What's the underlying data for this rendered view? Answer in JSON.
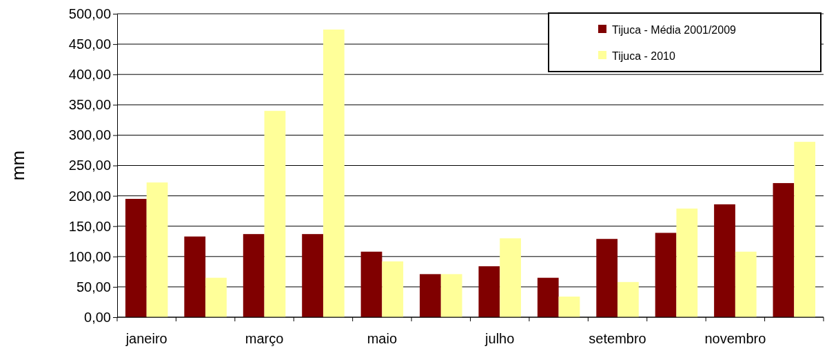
{
  "chart_data": {
    "type": "bar",
    "ylabel": "mm",
    "categories": [
      "janeiro",
      null,
      "março",
      null,
      "maio",
      null,
      "julho",
      null,
      "setembro",
      null,
      "novembro",
      null
    ],
    "series": [
      {
        "name": "Tijuca - Média 2001/2009",
        "color": "#800000",
        "values": [
          195,
          133,
          137,
          137,
          108,
          71,
          84,
          65,
          129,
          139,
          186,
          221
        ]
      },
      {
        "name": "Tijuca - 2010",
        "color": "#ffff99",
        "values": [
          222,
          65,
          340,
          474,
          92,
          71,
          130,
          34,
          58,
          179,
          108,
          289
        ]
      }
    ],
    "ylim": [
      0,
      500
    ],
    "yticks": [
      {
        "value": 0,
        "label": "0,00"
      },
      {
        "value": 50,
        "label": "50,00"
      },
      {
        "value": 100,
        "label": "100,00"
      },
      {
        "value": 150,
        "label": "150,00"
      },
      {
        "value": 200,
        "label": "200,00"
      },
      {
        "value": 250,
        "label": "250,00"
      },
      {
        "value": 300,
        "label": "300,00"
      },
      {
        "value": 350,
        "label": "350,00"
      },
      {
        "value": 400,
        "label": "400,00"
      },
      {
        "value": 450,
        "label": "450,00"
      },
      {
        "value": 500,
        "label": "500,00"
      }
    ],
    "grid": "y",
    "legend": "top right"
  }
}
